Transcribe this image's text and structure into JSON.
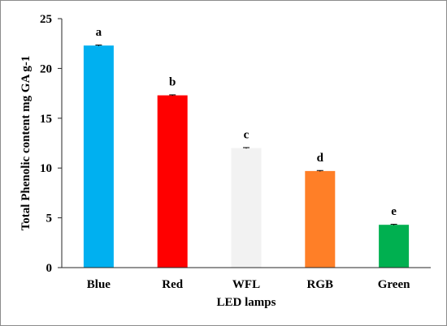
{
  "chart_data": {
    "type": "bar",
    "title": "",
    "xlabel": "LED lamps",
    "ylabel": "Total Phenolic content mg GA g-1",
    "categories": [
      "Blue",
      "Red",
      "WFL",
      "RGB",
      "Green"
    ],
    "values": [
      22.3,
      17.3,
      12.0,
      9.7,
      4.3
    ],
    "errors": [
      0.05,
      0.05,
      0.05,
      0.05,
      0.05
    ],
    "significance_letters": [
      "a",
      "b",
      "c",
      "d",
      "e"
    ],
    "colors": [
      "#00b0f0",
      "#ff0000",
      "#f2f2f2",
      "#ff7f27",
      "#00b050"
    ],
    "ylim": [
      0,
      25
    ],
    "yticks": [
      0,
      5,
      10,
      15,
      20,
      25
    ],
    "grid": false,
    "legend": "none"
  }
}
